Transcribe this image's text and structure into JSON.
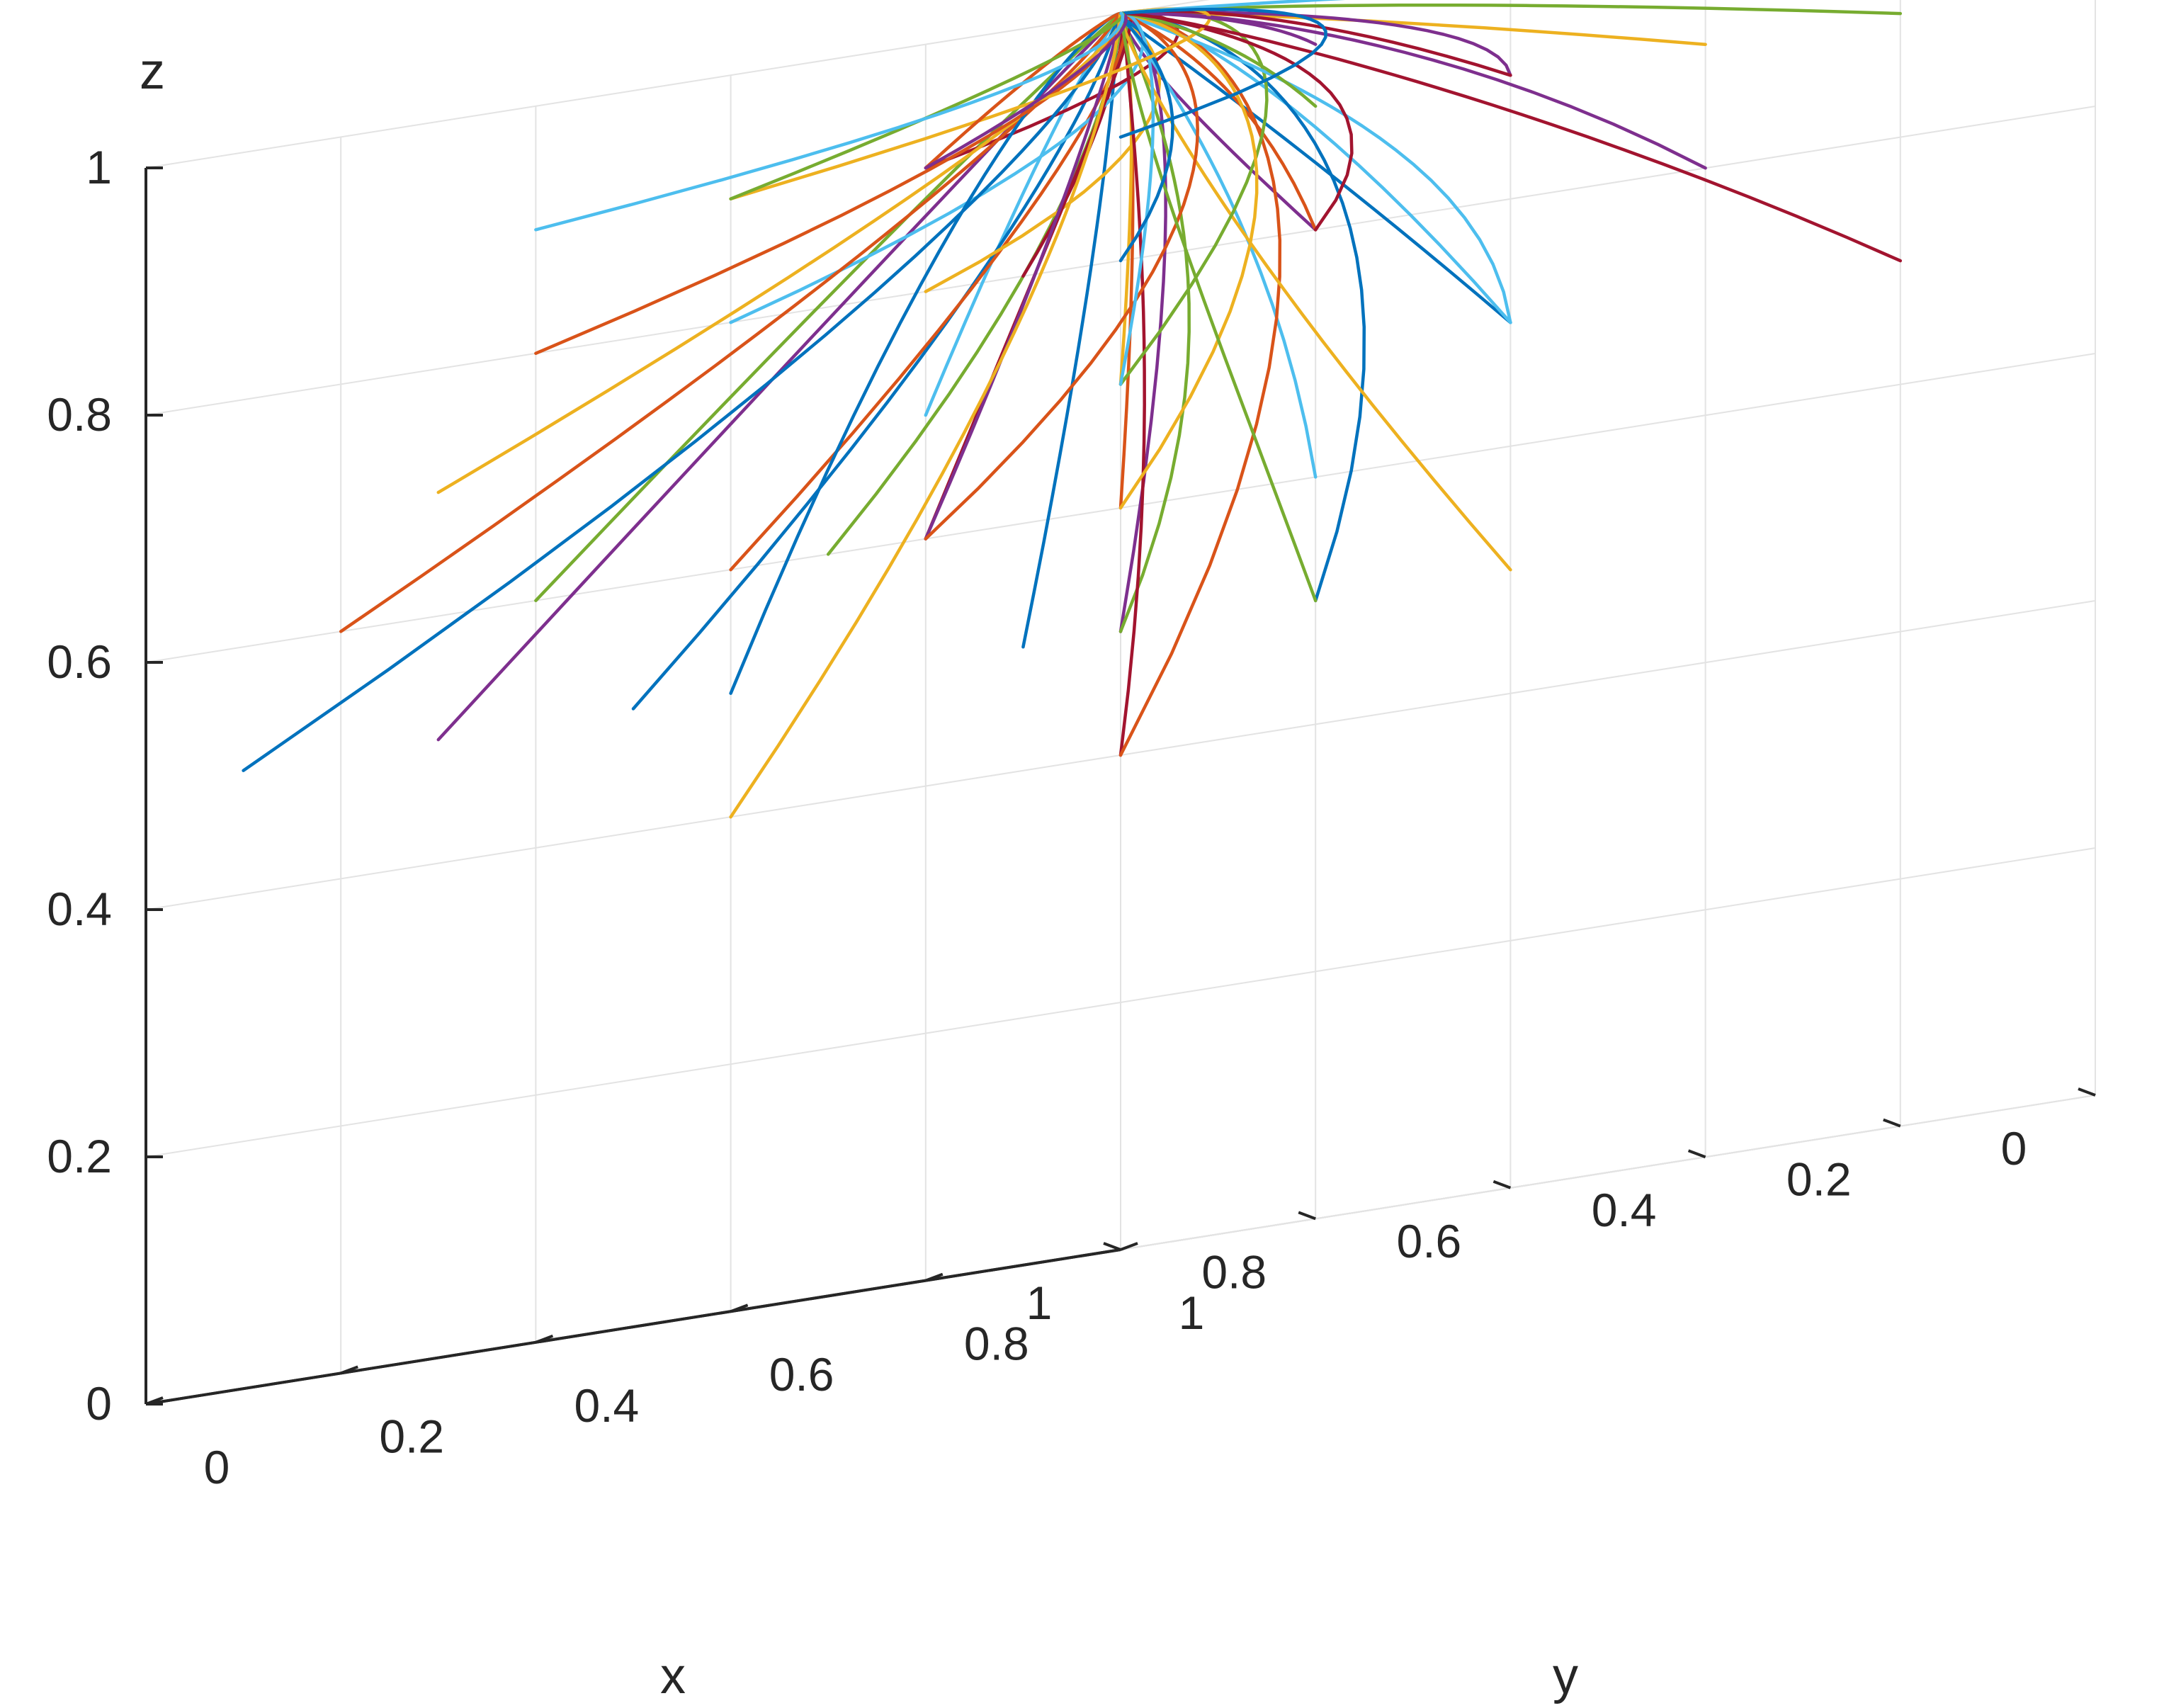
{
  "chart_data": {
    "type": "line",
    "subtype": "3d-trajectories",
    "title": "",
    "xlabel": "x",
    "ylabel": "y",
    "zlabel": "z",
    "xlim": [
      0,
      1
    ],
    "ylim": [
      0,
      1
    ],
    "zlim": [
      0,
      1
    ],
    "grid": true,
    "x_ticks": [
      "0",
      "0.2",
      "0.4",
      "0.6",
      "0.8",
      "1"
    ],
    "y_ticks": [
      "0",
      "0.2",
      "0.4",
      "0.6",
      "0.8",
      "1"
    ],
    "z_ticks": [
      "0",
      "0.2",
      "0.4",
      "0.6",
      "0.8",
      "1"
    ],
    "colors": [
      "#0072BD",
      "#D95319",
      "#EDB120",
      "#7E2F8E",
      "#77AC30",
      "#4DBEEE",
      "#A2142F"
    ],
    "attractor": [
      0,
      0,
      1
    ],
    "initial_points": [
      [
        0.1,
        0.0,
        0.5
      ],
      [
        0.1,
        0.1,
        0.6
      ],
      [
        0.1,
        0.1,
        0.7
      ],
      [
        0.1,
        0.3,
        0.8
      ],
      [
        0.3,
        0.0,
        0.6
      ],
      [
        0.3,
        0.1,
        0.7
      ],
      [
        0.3,
        0.2,
        0.8
      ],
      [
        0.5,
        0.0,
        0.5
      ],
      [
        0.5,
        0.1,
        0.6
      ],
      [
        0.5,
        0.3,
        0.8
      ],
      [
        0.7,
        0.0,
        0.5
      ],
      [
        0.7,
        0.1,
        0.6
      ],
      [
        0.7,
        0.3,
        0.8
      ],
      [
        0.7,
        0.5,
        0.9
      ],
      [
        0.9,
        0.0,
        0.5
      ],
      [
        0.9,
        0.1,
        0.6
      ],
      [
        0.9,
        0.2,
        0.7
      ],
      [
        0.3,
        0.3,
        0.5
      ],
      [
        0.5,
        0.5,
        0.5
      ],
      [
        0.3,
        0.5,
        0.6
      ],
      [
        0.5,
        0.3,
        0.6
      ],
      [
        0.1,
        0.5,
        0.7
      ],
      [
        0.3,
        0.5,
        0.8
      ],
      [
        0.1,
        0.7,
        0.9
      ],
      [
        0.3,
        0.7,
        0.9
      ],
      [
        0.1,
        0.9,
        0.9
      ],
      [
        0.3,
        0.7,
        0.7
      ],
      [
        0.5,
        0.5,
        0.4
      ],
      [
        0.5,
        0.7,
        0.5
      ],
      [
        0.7,
        0.7,
        0.4
      ],
      [
        0.5,
        0.9,
        0.5
      ],
      [
        0.7,
        0.5,
        0.6
      ],
      [
        0.7,
        0.7,
        0.7
      ],
      [
        0.5,
        0.9,
        0.7
      ],
      [
        0.7,
        0.9,
        0.8
      ],
      [
        0.9,
        0.5,
        0.5
      ],
      [
        0.9,
        0.7,
        0.6
      ],
      [
        0.9,
        0.9,
        0.6
      ],
      [
        0.3,
        0.9,
        0.8
      ],
      [
        0.1,
        0.3,
        0.5
      ],
      [
        0.3,
        0.3,
        0.7
      ],
      [
        0.1,
        0.5,
        0.9
      ],
      [
        0.5,
        0.5,
        0.8
      ],
      [
        0.9,
        0.3,
        0.8
      ],
      [
        0.9,
        0.5,
        0.9
      ],
      [
        0.7,
        0.9,
        0.95
      ],
      [
        0.5,
        0.7,
        0.9
      ],
      [
        0.3,
        0.9,
        0.95
      ],
      [
        0.1,
        0.9,
        0.7
      ],
      [
        0.9,
        0.9,
        0.9
      ],
      [
        0.9,
        0.7,
        0.9
      ],
      [
        0.7,
        0.3,
        0.4
      ],
      [
        0.3,
        0.1,
        0.9
      ],
      [
        0.5,
        0.1,
        0.9
      ],
      [
        0.7,
        0.1,
        0.9
      ]
    ]
  }
}
